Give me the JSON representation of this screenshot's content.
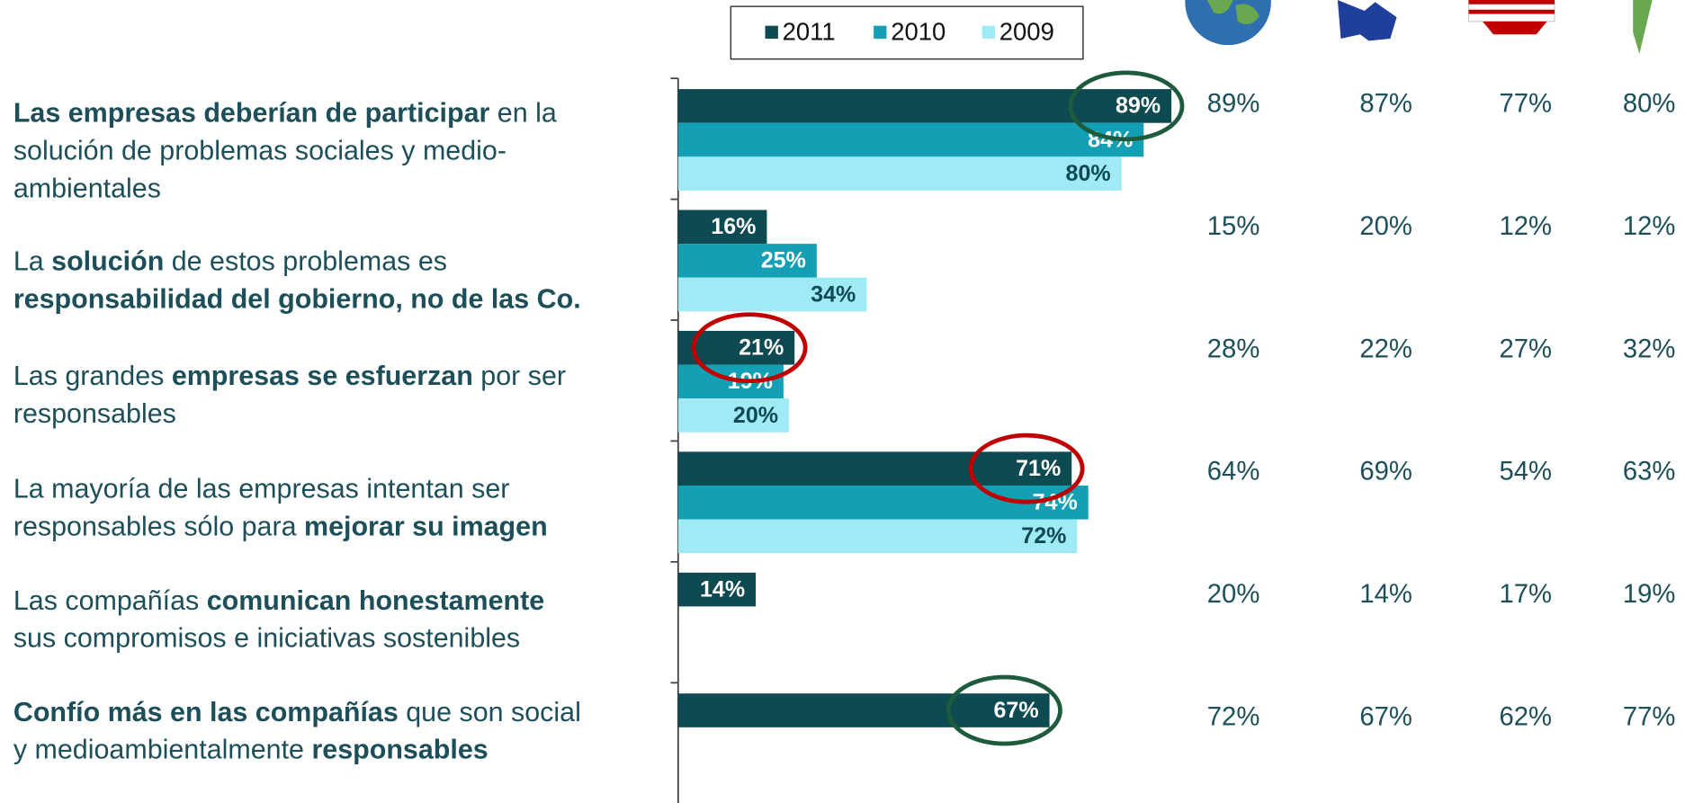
{
  "chart_data": {
    "type": "barh",
    "categories": [
      [
        [
          {
            "text": "Las empresas deberían de participar",
            "bold": true
          },
          {
            "text": " en la"
          }
        ],
        [
          {
            "text": "solución de problemas sociales y medio-"
          }
        ],
        [
          {
            "text": "ambientales"
          }
        ]
      ],
      [
        [
          {
            "text": "La "
          },
          {
            "text": "solución",
            "bold": true
          },
          {
            "text": " de estos problemas es"
          }
        ],
        [
          {
            "text": "responsabilidad del gobierno, no de las Co.",
            "bold": true
          }
        ]
      ],
      [
        [
          {
            "text": "Las grandes "
          },
          {
            "text": "empresas se esfuerzan",
            "bold": true
          },
          {
            "text": " por ser"
          }
        ],
        [
          {
            "text": "responsables"
          }
        ]
      ],
      [
        [
          {
            "text": "La mayoría de las empresas intentan ser"
          }
        ],
        [
          {
            "text": "responsables sólo para "
          },
          {
            "text": "mejorar su imagen",
            "bold": true
          }
        ]
      ],
      [
        [
          {
            "text": "Las compañías "
          },
          {
            "text": "comunican honestamente",
            "bold": true
          }
        ],
        [
          {
            "text": "sus compromisos e iniciativas sostenibles"
          }
        ]
      ],
      [
        [
          {
            "text": "Confío más en las compañías",
            "bold": true
          },
          {
            "text": " que son social"
          }
        ],
        [
          {
            "text": "y medioambientalmente "
          },
          {
            "text": "responsables",
            "bold": true
          }
        ]
      ]
    ],
    "series": [
      {
        "name": "2011",
        "color": "#0d4a52",
        "label_color": "#ffffff",
        "values": [
          89,
          16,
          21,
          71,
          14,
          67
        ],
        "value_labels": [
          "89%",
          "16%",
          "21%",
          "71%",
          "14%",
          "67%"
        ],
        "highlight_colors": [
          "#1e5a3c",
          null,
          "#c00000",
          "#c00000",
          null,
          "#1e5a3c"
        ]
      },
      {
        "name": "2010",
        "color": "#14a0b4",
        "label_color": "#ffffff",
        "values": [
          84,
          25,
          19,
          74,
          null,
          null
        ],
        "value_labels": [
          "84%",
          "25%",
          "19%",
          "74%",
          null,
          null
        ]
      },
      {
        "name": "2009",
        "color": "#a0eaf5",
        "label_color": "#0d4a52",
        "values": [
          80,
          34,
          20,
          72,
          null,
          null
        ],
        "value_labels": [
          "80%",
          "34%",
          "20%",
          "72%",
          null,
          null
        ]
      }
    ],
    "xlim": [
      0,
      100
    ],
    "legend": "top"
  },
  "table": {
    "rows": [
      [
        "89%",
        "87%",
        "77%",
        "80%"
      ],
      [
        "15%",
        "20%",
        "12%",
        "12%"
      ],
      [
        "28%",
        "22%",
        "27%",
        "32%"
      ],
      [
        "64%",
        "69%",
        "54%",
        "63%"
      ],
      [
        "20%",
        "14%",
        "17%",
        "19%"
      ],
      [
        "72%",
        "67%",
        "62%",
        "77%"
      ]
    ]
  }
}
